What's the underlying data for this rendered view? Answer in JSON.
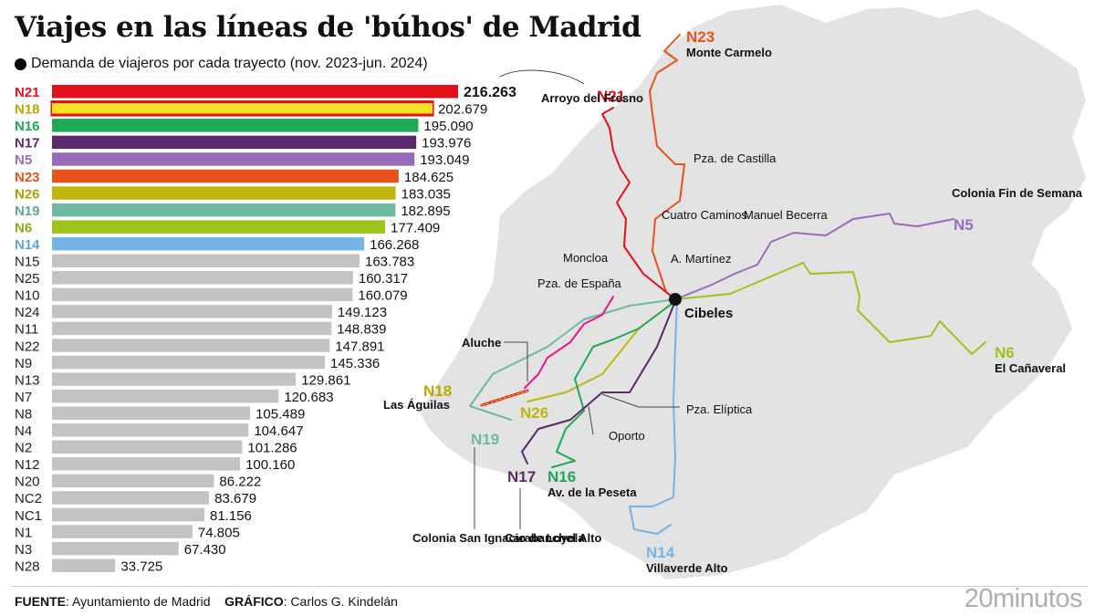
{
  "title": "Viajes en las líneas de 'búhos' de Madrid",
  "subtitle": "Demanda de viajeros por cada trayecto (nov. 2023-jun. 2024)",
  "chart_data": {
    "type": "bar",
    "orientation": "horizontal",
    "categories": [
      "N21",
      "N18",
      "N16",
      "N17",
      "N5",
      "N23",
      "N26",
      "N19",
      "N6",
      "N14",
      "N15",
      "N25",
      "N10",
      "N24",
      "N11",
      "N22",
      "N9",
      "N13",
      "N7",
      "N8",
      "N4",
      "N2",
      "N12",
      "N20",
      "NC2",
      "NC1",
      "N1",
      "N3",
      "N28"
    ],
    "values": [
      216263,
      202679,
      195090,
      193976,
      193049,
      184625,
      183035,
      182895,
      177409,
      166268,
      163783,
      160317,
      160079,
      149123,
      148839,
      147891,
      145336,
      129861,
      120683,
      105489,
      104647,
      101286,
      100160,
      86222,
      83679,
      81156,
      74805,
      67430,
      33725
    ],
    "value_labels": [
      "216.263",
      "202.679",
      "195.090",
      "193.976",
      "193.049",
      "184.625",
      "183.035",
      "182.895",
      "177.409",
      "166.268",
      "163.783",
      "160.317",
      "160.079",
      "149.123",
      "148.839",
      "147.891",
      "145.336",
      "129.861",
      "120.683",
      "105.489",
      "104.647",
      "101.286",
      "100.160",
      "86.222",
      "83.679",
      "81.156",
      "74.805",
      "67.430",
      "33.725"
    ],
    "colors": [
      "#e3101b",
      "#f7e224",
      "#1fa855",
      "#5a2a6a",
      "#9a6bb8",
      "#e8531c",
      "#bdb80b",
      "#6fb9a2",
      "#9dc41a",
      "#77b4e6",
      "#c3c3c3",
      "#c3c3c3",
      "#c3c3c3",
      "#c3c3c3",
      "#c3c3c3",
      "#c3c3c3",
      "#c3c3c3",
      "#c3c3c3",
      "#c3c3c3",
      "#c3c3c3",
      "#c3c3c3",
      "#c3c3c3",
      "#c3c3c3",
      "#c3c3c3",
      "#c3c3c3",
      "#c3c3c3",
      "#c3c3c3",
      "#c3c3c3",
      "#c3c3c3"
    ],
    "label_colors": [
      "#e3101b",
      "#b8a800",
      "#1fa855",
      "#5a2a6a",
      "#9a6bb8",
      "#e8531c",
      "#a8a300",
      "#5fa993",
      "#8aae10",
      "#5ea2dd",
      "#222222",
      "#222222",
      "#222222",
      "#222222",
      "#222222",
      "#222222",
      "#222222",
      "#222222",
      "#222222",
      "#222222",
      "#222222",
      "#222222",
      "#222222",
      "#222222",
      "#222222",
      "#222222",
      "#222222",
      "#222222",
      "#222222"
    ],
    "highlight_outline": {
      "N18": "#e3101b"
    },
    "xlim": [
      0,
      216263
    ]
  },
  "map": {
    "line_labels": [
      {
        "text": "N21",
        "color": "#e3101b"
      },
      {
        "text": "N23",
        "color": "#e8531c"
      },
      {
        "text": "N5",
        "color": "#9a6bb8"
      },
      {
        "text": "N6",
        "color": "#9dc41a"
      },
      {
        "text": "N18",
        "color": "#b8a800"
      },
      {
        "text": "N26",
        "color": "#bdb80b"
      },
      {
        "text": "N19",
        "color": "#6fb9a2"
      },
      {
        "text": "N17",
        "color": "#5a2a6a"
      },
      {
        "text": "N16",
        "color": "#1fa855"
      },
      {
        "text": "N14",
        "color": "#77b4e6"
      }
    ],
    "places": [
      "Monte Carmelo",
      "Arroyo del Fresno",
      "Pza. de Castilla",
      "Cuatro Caminos",
      "Manuel Becerra",
      "Colonia Fin de Semana",
      "Moncloa",
      "A. Martínez",
      "Pza. de España",
      "Cibeles",
      "El Cañaveral",
      "Aluche",
      "Las Águilas",
      "Pza. Elíptica",
      "Oporto",
      "Av. de la Peseta",
      "Colonia San Ignacio de Loyola",
      "Carabanchel Alto",
      "Villaverde Alto"
    ]
  },
  "footer": {
    "source_label": "FUENTE",
    "source": ": Ayuntamiento de Madrid",
    "graphic_label": "GRÁFICO",
    "graphic": ": Carlos G. Kindelán"
  },
  "brand": "20minutos"
}
